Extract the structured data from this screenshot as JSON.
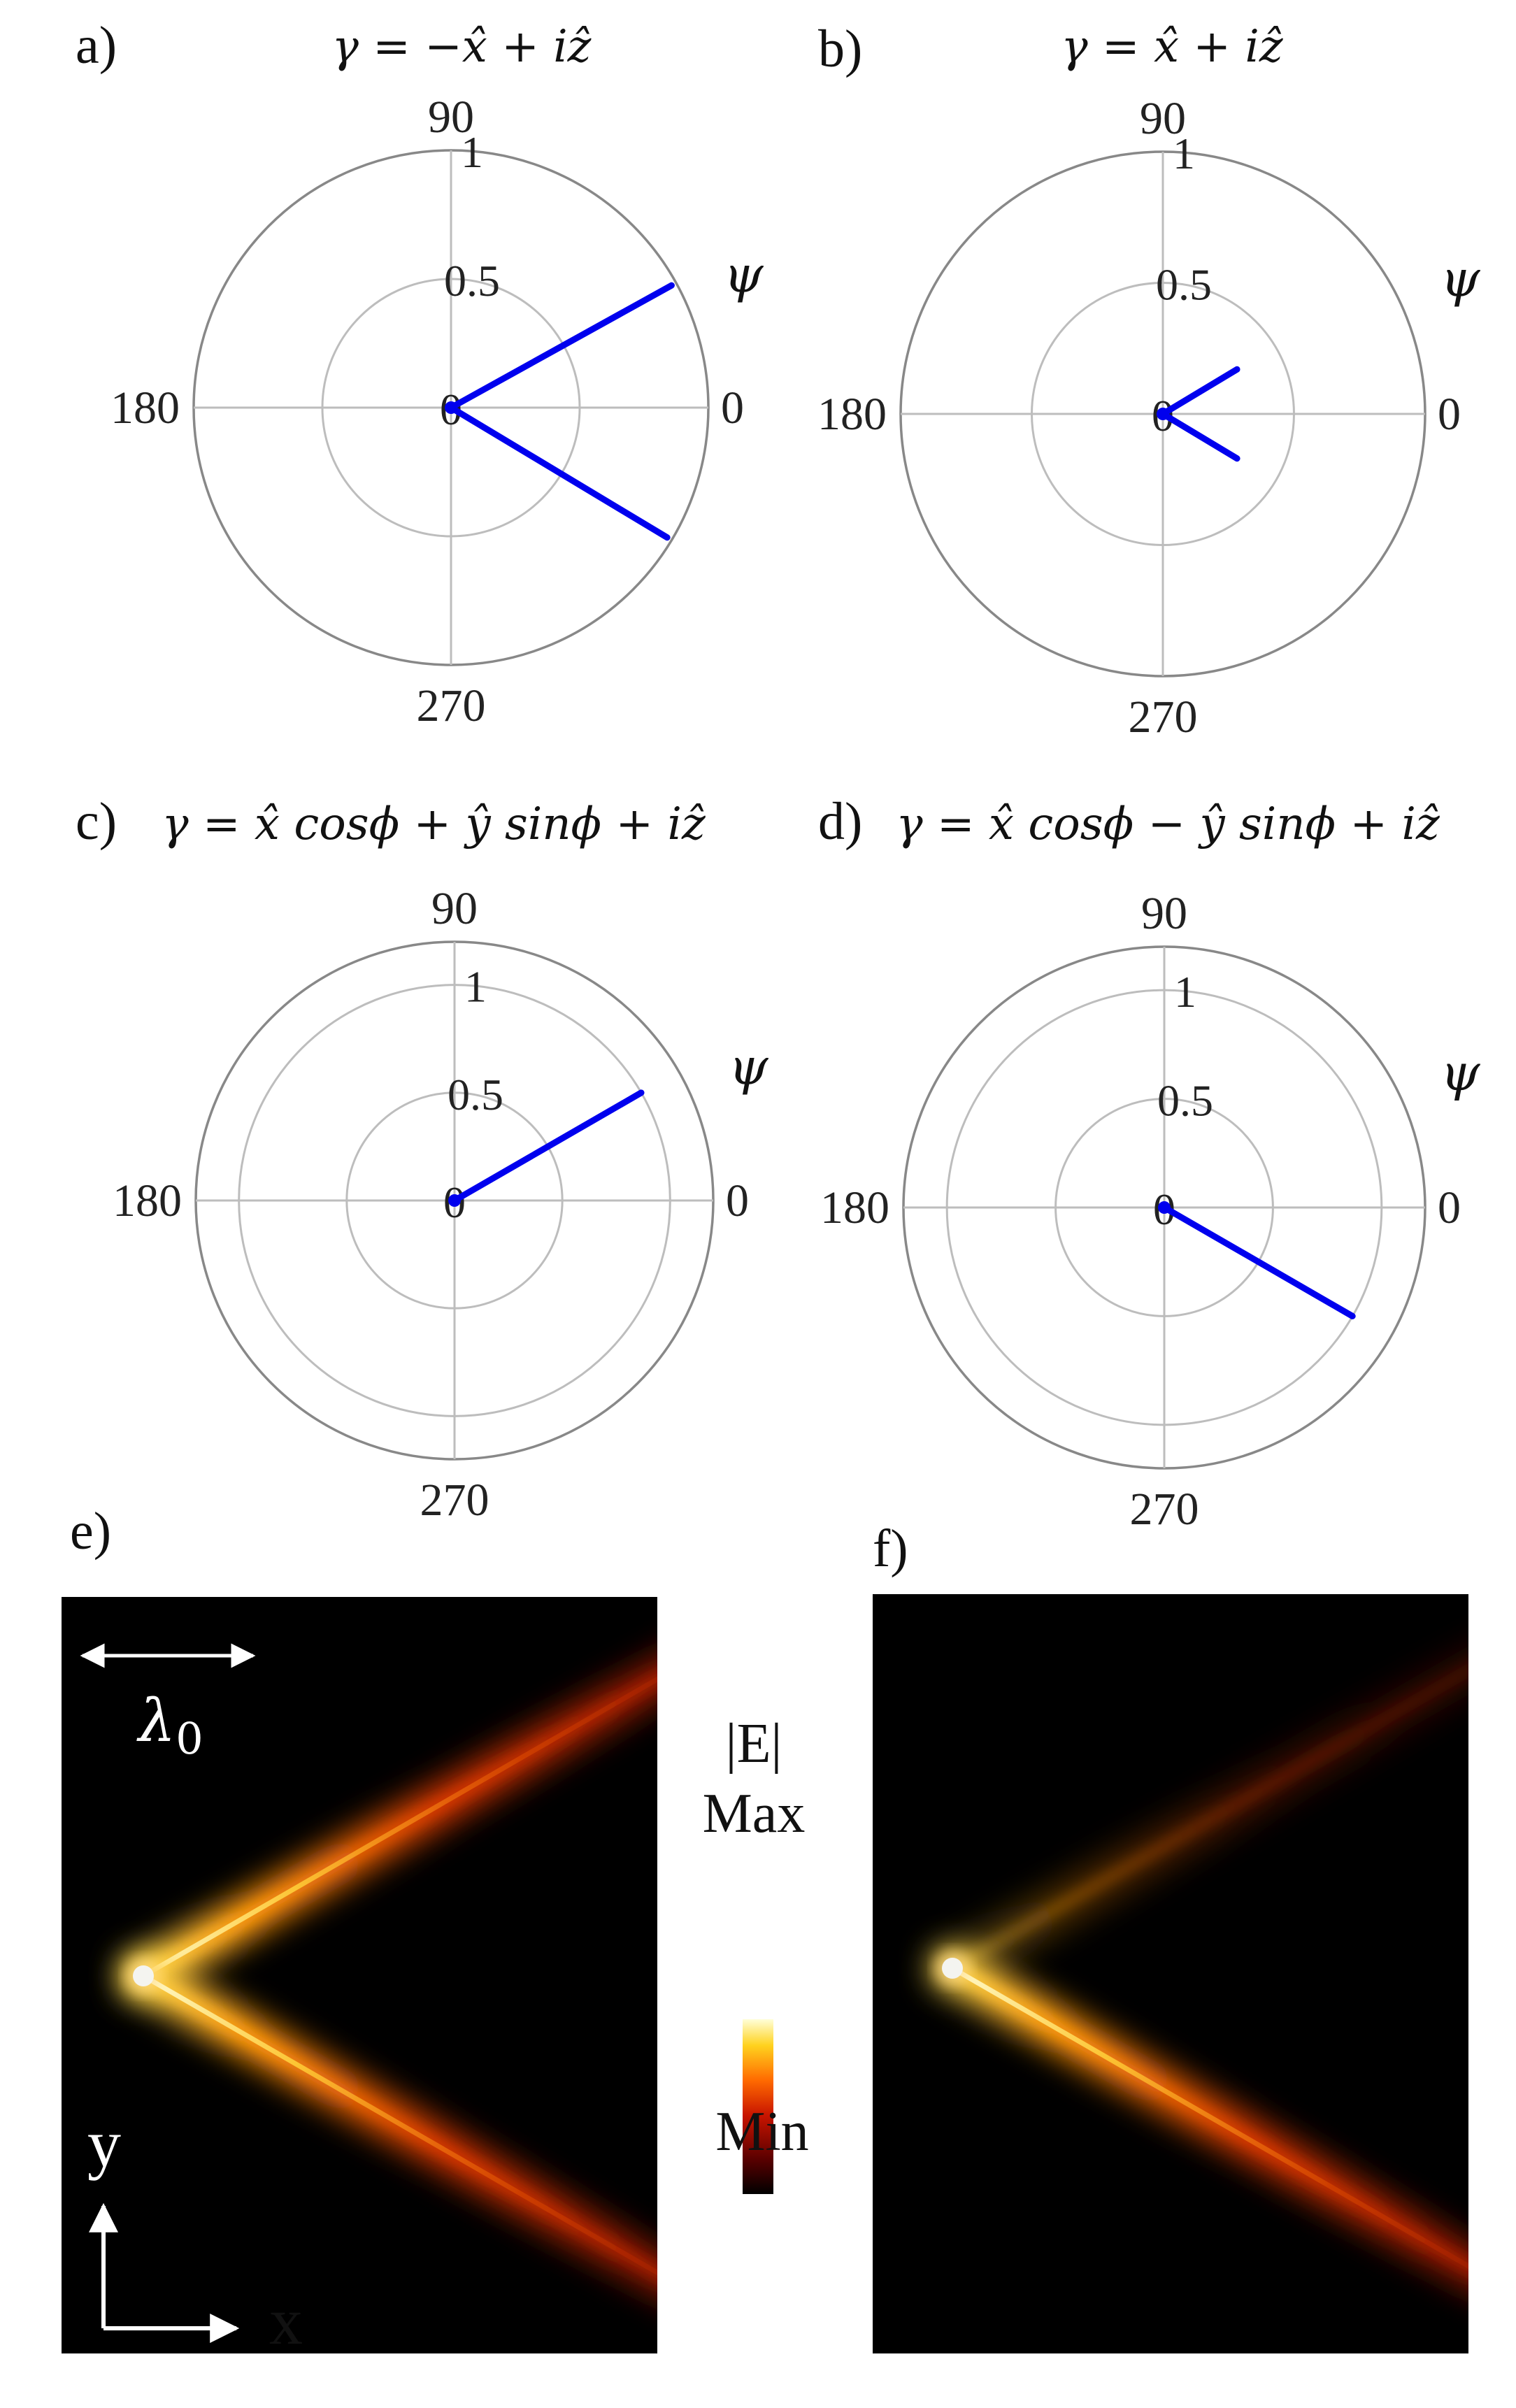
{
  "chart_data": [
    {
      "type": "polar",
      "panel_label": "a)",
      "title": "γ = −x̂ + iẑ",
      "angle_labels": [
        "90",
        "180",
        "0",
        "270"
      ],
      "radial_ticks": [
        "0",
        "0.5",
        "1"
      ],
      "series_label": "ψ",
      "rlim": [
        0,
        1
      ],
      "lines": [
        {
          "angle_deg": 29,
          "r": 0.98
        },
        {
          "angle_deg": -31,
          "r": 0.98
        }
      ]
    },
    {
      "type": "polar",
      "panel_label": "b)",
      "title": "γ = x̂ + iẑ",
      "angle_labels": [
        "90",
        "180",
        "0",
        "270"
      ],
      "radial_ticks": [
        "0",
        "0.5",
        "1"
      ],
      "series_label": "ψ",
      "rlim": [
        0,
        1
      ],
      "lines": [
        {
          "angle_deg": 31,
          "r": 0.33
        },
        {
          "angle_deg": -31,
          "r": 0.33
        }
      ]
    },
    {
      "type": "polar",
      "panel_label": "c)",
      "title": "γ = x̂ cosϕ + ŷ sinϕ + iẑ",
      "angle_labels": [
        "90",
        "180",
        "0",
        "270"
      ],
      "radial_ticks": [
        "0",
        "0.5",
        "1"
      ],
      "series_label": "ψ",
      "rlim": [
        0,
        1.2
      ],
      "lines": [
        {
          "angle_deg": 30,
          "r": 1.0
        }
      ]
    },
    {
      "type": "polar",
      "panel_label": "d)",
      "title": "γ = x̂ cosϕ − ŷ sinϕ + iẑ",
      "angle_labels": [
        "90",
        "180",
        "0",
        "270"
      ],
      "radial_ticks": [
        "0",
        "0.5",
        "1"
      ],
      "series_label": "ψ",
      "rlim": [
        0,
        1.2
      ],
      "lines": [
        {
          "angle_deg": -30,
          "r": 1.0
        }
      ]
    },
    {
      "type": "heatmap",
      "panel_label": "e)",
      "scale_label": "λ0",
      "axis_x_label": "x",
      "axis_y_label": "y",
      "beams": [
        {
          "angle_deg": 30,
          "intensity": 1.0
        },
        {
          "angle_deg": -30,
          "intensity": 1.0
        }
      ]
    },
    {
      "type": "heatmap",
      "panel_label": "f)",
      "beams": [
        {
          "angle_deg": 30,
          "intensity": 0.3
        },
        {
          "angle_deg": -30,
          "intensity": 1.0
        }
      ]
    }
  ],
  "colorbar": {
    "title": "|E|",
    "max_label": "Max",
    "min_label": "Min",
    "colors": [
      "#000000",
      "#5a0000",
      "#c81400",
      "#ff6a00",
      "#ffd21e",
      "#ffffd8"
    ]
  },
  "colors": {
    "line": "#0000ee",
    "grid": "#bdbdbd",
    "outer_circle": "#888888"
  }
}
